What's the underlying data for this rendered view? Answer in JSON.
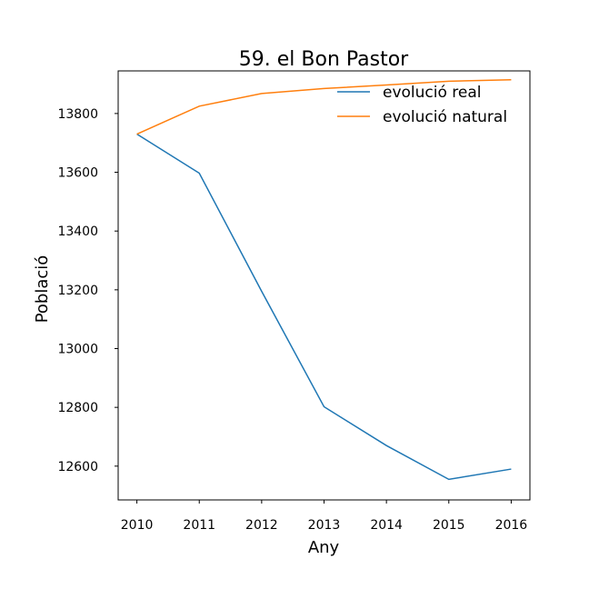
{
  "chart_data": {
    "type": "line",
    "title": "59. el Bon Pastor",
    "xlabel": "Any",
    "ylabel": "Població",
    "x": [
      2010,
      2011,
      2012,
      2013,
      2014,
      2015,
      2016
    ],
    "xlim": [
      2009.7,
      2016.3
    ],
    "ylim": [
      12485,
      13945
    ],
    "yticks": [
      12600,
      12800,
      13000,
      13200,
      13400,
      13600,
      13800
    ],
    "grid": false,
    "legend_position": "top-right",
    "series": [
      {
        "name": "evolució real",
        "color": "#1f77b4",
        "values": [
          13730,
          13597,
          13195,
          12802,
          12670,
          12555,
          12590
        ]
      },
      {
        "name": "evolució natural",
        "color": "#ff7f0e",
        "values": [
          13730,
          13825,
          13868,
          13885,
          13897,
          13910,
          13915
        ]
      }
    ]
  }
}
